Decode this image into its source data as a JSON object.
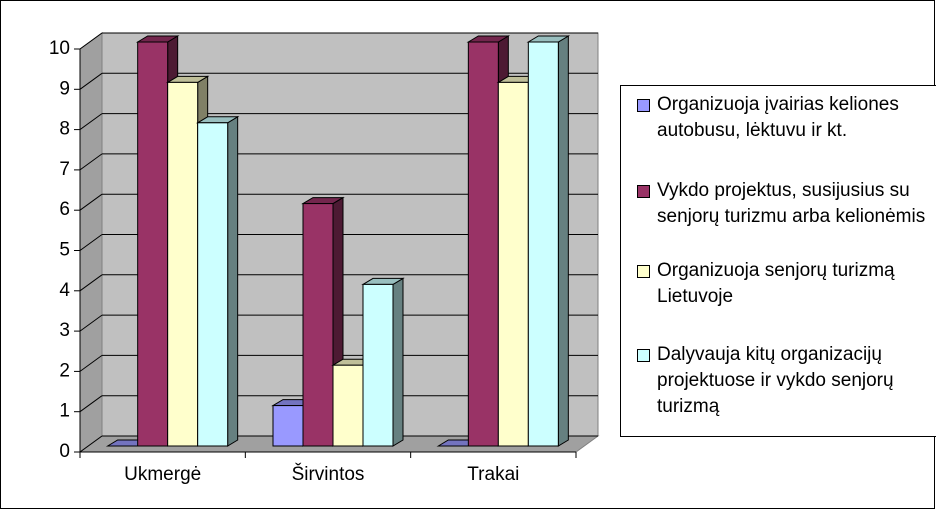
{
  "chart_data": {
    "type": "bar3d",
    "categories": [
      "Ukmergė",
      "Širvintos",
      "Trakai"
    ],
    "series": [
      {
        "name": "Organizuoja įvairias keliones autobusu, lėktuvu ir kt.",
        "color": "#9999ff",
        "values": [
          0,
          1,
          0
        ]
      },
      {
        "name": "Vykdo projektus, susijusius su senjorų turizmu arba kelionėmis",
        "color": "#993366",
        "values": [
          10,
          6,
          10
        ]
      },
      {
        "name": "Organizuoja senjorų turizmą Lietuvoje",
        "color": "#ffffcc",
        "values": [
          9,
          2,
          9
        ]
      },
      {
        "name": "Dalyvauja kitų organizacijų projektuose ir vykdo senjorų turizmą",
        "color": "#ccffff",
        "values": [
          8,
          4,
          10
        ]
      }
    ],
    "ylim": [
      0,
      10
    ],
    "yticks": [
      0,
      1,
      2,
      3,
      4,
      5,
      6,
      7,
      8,
      9,
      10
    ],
    "grid": true,
    "legend": "right"
  }
}
